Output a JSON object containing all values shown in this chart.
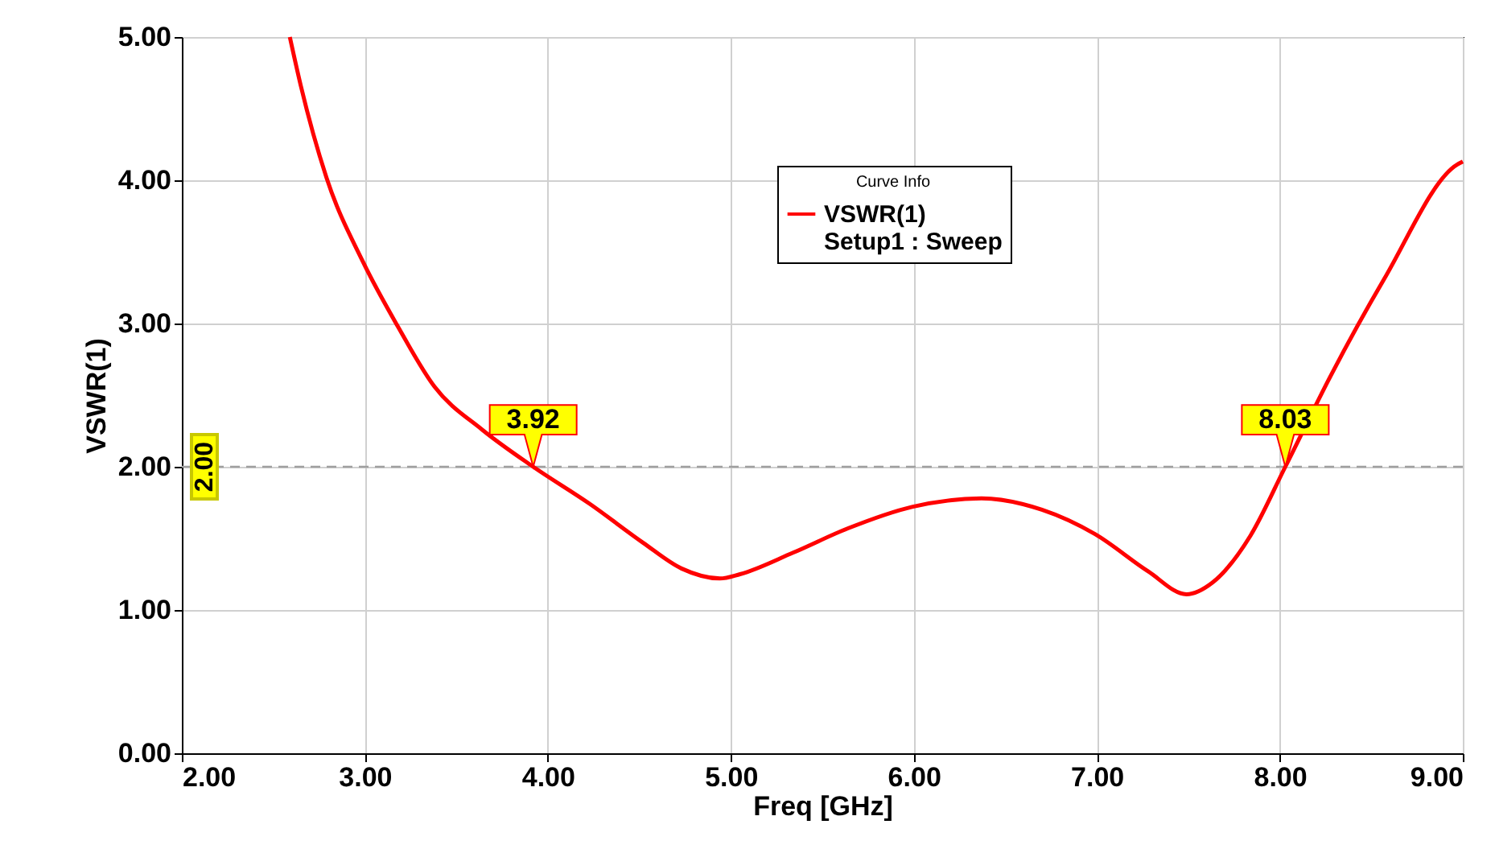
{
  "chart_data": {
    "type": "line",
    "xlabel": "Freq [GHz]",
    "ylabel": "VSWR(1)",
    "legend_title": "Curve Info",
    "xlim": [
      2,
      9
    ],
    "ylim": [
      0,
      5
    ],
    "xticks": [
      {
        "value": 2,
        "label": "2.00"
      },
      {
        "value": 3,
        "label": "3.00"
      },
      {
        "value": 4,
        "label": "4.00"
      },
      {
        "value": 5,
        "label": "5.00"
      },
      {
        "value": 6,
        "label": "6.00"
      },
      {
        "value": 7,
        "label": "7.00"
      },
      {
        "value": 8,
        "label": "8.00"
      },
      {
        "value": 9,
        "label": "9.00"
      }
    ],
    "yticks": [
      {
        "value": 0,
        "label": "0.00"
      },
      {
        "value": 1,
        "label": "1.00"
      },
      {
        "value": 2,
        "label": "2.00"
      },
      {
        "value": 3,
        "label": "3.00"
      },
      {
        "value": 4,
        "label": "4.00"
      },
      {
        "value": 5,
        "label": "5.00"
      }
    ],
    "series": [
      {
        "name": "VSWR(1)\nSetup1 : Sweep",
        "color": "#ff0000",
        "x": [
          2.59,
          2.65,
          2.79,
          2.99,
          3.18,
          3.38,
          3.64,
          3.92,
          4.23,
          4.52,
          4.73,
          4.94,
          5.05,
          5.34,
          5.64,
          5.99,
          6.37,
          6.7,
          6.99,
          7.28,
          7.49,
          7.63,
          7.84,
          8.03,
          8.28,
          8.57,
          8.97,
          9.0
        ],
        "values": [
          5.0,
          4.66,
          4.02,
          3.43,
          2.98,
          2.56,
          2.26,
          2.0,
          1.74,
          1.47,
          1.29,
          1.22,
          1.25,
          1.4,
          1.57,
          1.72,
          1.78,
          1.7,
          1.53,
          1.27,
          1.11,
          1.19,
          1.52,
          2.0,
          2.64,
          3.31,
          4.11,
          4.13
        ]
      }
    ],
    "ref_lines": [
      {
        "axis": "y",
        "value": 2,
        "label": "2.00",
        "color": "#a0a0a0",
        "line_style": "dashed"
      }
    ],
    "annotations": [
      {
        "text": "3.92",
        "x": 3.92,
        "y": 2
      },
      {
        "text": "8.03",
        "x": 8.03,
        "y": 2
      }
    ],
    "grid": true,
    "legend": "top",
    "marker": "none",
    "line_style": "solid"
  }
}
